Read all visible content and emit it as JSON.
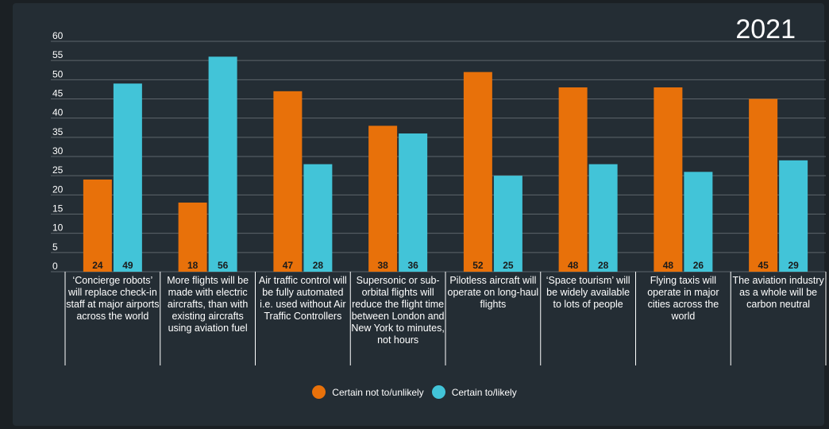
{
  "chart_data": {
    "type": "bar",
    "title": "2021",
    "categories": [
      "‘Concierge robots’ will replace check-in staff at major airports across the world",
      "More flights will be made with electric aircrafts, than with existing aircrafts using aviation fuel",
      "Air traffic control will be fully automated i.e. used without Air Traffic Controllers",
      "Supersonic or sub-orbital flights will reduce the flight time between London and New York to minutes, not hours",
      "Pilotless aircraft will operate on long-haul flights",
      "‘Space tourism’ will be widely available to lots of people",
      "Flying taxis will operate in major cities across the world",
      "The aviation industry as a whole will be carbon neutral"
    ],
    "series": [
      {
        "name": "Certain not to/unlikely",
        "color": "#e8710a",
        "values": [
          24,
          18,
          47,
          38,
          52,
          48,
          48,
          45
        ]
      },
      {
        "name": "Certain to/likely",
        "color": "#42c4d8",
        "values": [
          49,
          56,
          28,
          36,
          25,
          28,
          26,
          29
        ]
      }
    ],
    "ylim": [
      0,
      60
    ],
    "yticks": [
      0,
      5,
      10,
      15,
      20,
      25,
      30,
      35,
      40,
      45,
      50,
      55,
      60
    ],
    "grid": true,
    "legend_position": "bottom"
  }
}
